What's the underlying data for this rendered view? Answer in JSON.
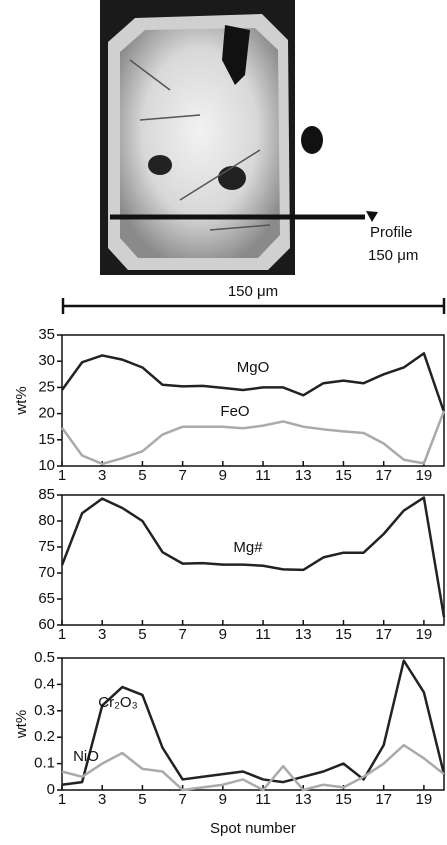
{
  "image": {
    "profile_label": "Profile",
    "profile_length": "150 μm",
    "scale_bar": "150 μm"
  },
  "chart_data": [
    {
      "type": "line",
      "ylabel": "wt%",
      "x": [
        1,
        2,
        3,
        4,
        5,
        6,
        7,
        8,
        9,
        10,
        11,
        12,
        13,
        14,
        15,
        16,
        17,
        18,
        19,
        20
      ],
      "xlim": [
        1,
        20
      ],
      "xticks": [
        1,
        3,
        5,
        7,
        9,
        11,
        13,
        15,
        17,
        19
      ],
      "ylim": [
        10,
        35
      ],
      "yticks": [
        10,
        15,
        20,
        25,
        30,
        35
      ],
      "series": [
        {
          "name": "MgO",
          "color": "#222222",
          "values": [
            24.5,
            29.8,
            31.1,
            30.3,
            28.8,
            25.5,
            25.2,
            25.3,
            24.9,
            24.5,
            25.0,
            25.0,
            23.5,
            25.8,
            26.3,
            25.8,
            27.5,
            28.8,
            31.5,
            20.3
          ]
        },
        {
          "name": "FeO",
          "color": "#aaaaaa",
          "values": [
            17.3,
            12.0,
            10.4,
            11.5,
            12.8,
            16.0,
            17.5,
            17.5,
            17.5,
            17.2,
            17.7,
            18.5,
            17.5,
            17.0,
            16.6,
            16.3,
            14.3,
            11.2,
            10.5,
            20.5
          ]
        }
      ]
    },
    {
      "type": "line",
      "x": [
        1,
        2,
        3,
        4,
        5,
        6,
        7,
        8,
        9,
        10,
        11,
        12,
        13,
        14,
        15,
        16,
        17,
        18,
        19,
        20
      ],
      "xlim": [
        1,
        20
      ],
      "xticks": [
        1,
        3,
        5,
        7,
        9,
        11,
        13,
        15,
        17,
        19
      ],
      "ylim": [
        60,
        85
      ],
      "yticks": [
        60,
        65,
        70,
        75,
        80,
        85
      ],
      "series": [
        {
          "name": "Mg#",
          "color": "#222222",
          "values": [
            71.5,
            81.5,
            84.3,
            82.5,
            80.0,
            74.0,
            71.8,
            71.9,
            71.6,
            71.6,
            71.4,
            70.7,
            70.6,
            73.0,
            73.9,
            73.9,
            77.5,
            82.0,
            84.5,
            61.5
          ]
        }
      ]
    },
    {
      "type": "line",
      "ylabel": "wt%",
      "xlabel": "Spot number",
      "x": [
        1,
        2,
        3,
        4,
        5,
        6,
        7,
        8,
        9,
        10,
        11,
        12,
        13,
        14,
        15,
        16,
        17,
        18,
        19,
        20
      ],
      "xlim": [
        1,
        20
      ],
      "xticks": [
        1,
        3,
        5,
        7,
        9,
        11,
        13,
        15,
        17,
        19
      ],
      "ylim": [
        0,
        0.5
      ],
      "yticks": [
        0,
        0.1,
        0.2,
        0.3,
        0.4,
        0.5
      ],
      "series": [
        {
          "name": "Cr₂O₃",
          "color": "#222222",
          "values": [
            0.02,
            0.03,
            0.32,
            0.39,
            0.36,
            0.16,
            0.04,
            0.05,
            0.06,
            0.07,
            0.04,
            0.03,
            0.05,
            0.07,
            0.1,
            0.04,
            0.17,
            0.49,
            0.37,
            0.06
          ]
        },
        {
          "name": "NiO",
          "color": "#aaaaaa",
          "values": [
            0.07,
            0.05,
            0.1,
            0.14,
            0.08,
            0.07,
            0.0,
            0.01,
            0.02,
            0.04,
            0.0,
            0.09,
            0.0,
            0.02,
            0.01,
            0.05,
            0.1,
            0.17,
            0.12,
            0.06
          ]
        }
      ]
    }
  ]
}
